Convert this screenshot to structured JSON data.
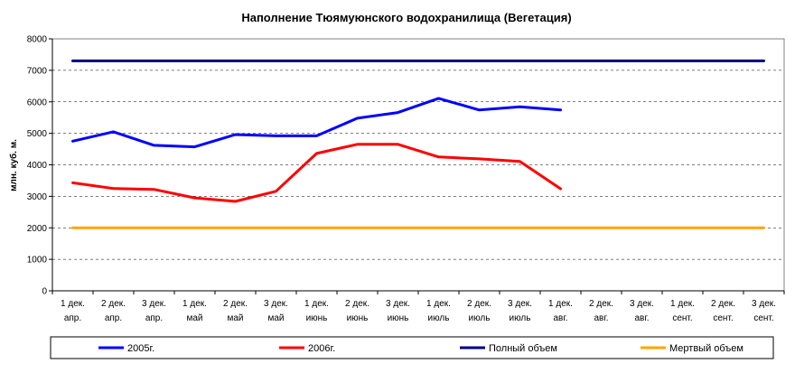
{
  "chart_data": {
    "type": "line",
    "title": "Наполнение Тюямуюнского водохранилища (Вегетация)",
    "ylabel": "млн. куб. м.",
    "xlabel": "",
    "ylim": [
      0,
      8000
    ],
    "yticks": [
      "0",
      "1000",
      "2000",
      "3000",
      "4000",
      "5000",
      "6000",
      "7000",
      "8000"
    ],
    "grid": "horizontal dashed",
    "legend_position": "bottom",
    "categories": [
      [
        "1 дек.",
        "апр."
      ],
      [
        "2 дек.",
        "апр."
      ],
      [
        "3 дек.",
        "апр."
      ],
      [
        "1 дек.",
        "май"
      ],
      [
        "2 дек.",
        "май"
      ],
      [
        "3 дек.",
        "май"
      ],
      [
        "1 дек.",
        "июнь"
      ],
      [
        "2 дек.",
        "июнь"
      ],
      [
        "3 дек.",
        "июнь"
      ],
      [
        "1 дек.",
        "июль"
      ],
      [
        "2 дек.",
        "июль"
      ],
      [
        "3 дек.",
        "июль"
      ],
      [
        "1 дек.",
        "авг."
      ],
      [
        "2 дек.",
        "авг."
      ],
      [
        "3 дек.",
        "авг."
      ],
      [
        "1 дек.",
        "сент."
      ],
      [
        "2 дек.",
        "сент."
      ],
      [
        "3 дек.",
        "сент."
      ]
    ],
    "series": [
      {
        "name": "2005г.",
        "color": "#0000ff",
        "values": [
          4750,
          5050,
          4620,
          4570,
          4960,
          4920,
          4920,
          5480,
          5660,
          6110,
          5740,
          5840,
          5740,
          null,
          null,
          null,
          null,
          null
        ]
      },
      {
        "name": "2006г.",
        "color": "#ff0000",
        "values": [
          3430,
          3250,
          3220,
          2950,
          2840,
          3160,
          4360,
          4650,
          4650,
          4250,
          4190,
          4110,
          3240,
          null,
          null,
          null,
          null,
          null
        ]
      },
      {
        "name": "Полный объем",
        "color": "#000080",
        "values": [
          7300,
          7300,
          7300,
          7300,
          7300,
          7300,
          7300,
          7300,
          7300,
          7300,
          7300,
          7300,
          7300,
          7300,
          7300,
          7300,
          7300,
          7300
        ]
      },
      {
        "name": "Мертвый объем",
        "color": "#ffa500",
        "values": [
          2000,
          2000,
          2000,
          2000,
          2000,
          2000,
          2000,
          2000,
          2000,
          2000,
          2000,
          2000,
          2000,
          2000,
          2000,
          2000,
          2000,
          2000
        ]
      }
    ]
  }
}
